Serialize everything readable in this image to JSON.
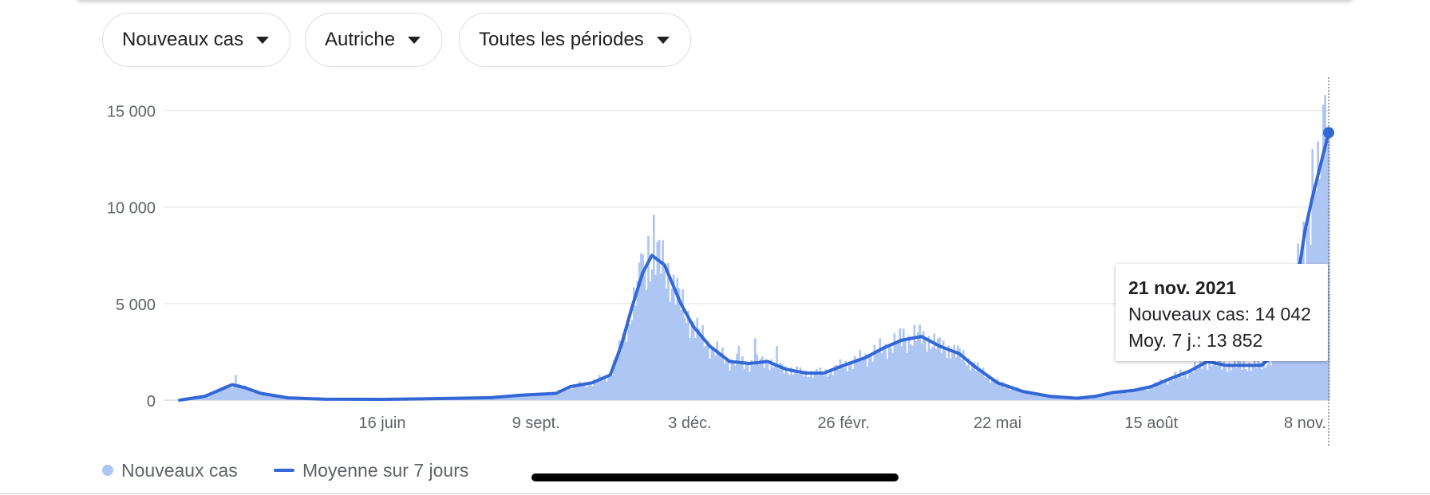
{
  "filters": {
    "metric": {
      "label": "Nouveaux cas"
    },
    "country": {
      "label": "Autriche"
    },
    "period": {
      "label": "Toutes les périodes"
    }
  },
  "colors": {
    "bars": "#aec6f4",
    "line": "#3367d6",
    "grid": "#e8eaed",
    "text": "#202124",
    "muted": "#5f6368"
  },
  "icons": {
    "dropdown": "caret-down-icon",
    "marker": "selected-point-marker"
  },
  "tooltip": {
    "date": "21 nov. 2021",
    "new_cases_line": "Nouveaux cas: 14 042",
    "avg_line": "Moy. 7 j.: 13 852"
  },
  "legend": {
    "bars_label": "Nouveaux cas",
    "line_label": "Moyenne sur 7 jours"
  },
  "chart_data": {
    "type": "bar",
    "combined_with": "line",
    "title": "",
    "xlabel": "",
    "ylabel": "",
    "ylim": [
      0,
      16800
    ],
    "grid": true,
    "legend_position": "bottom-left",
    "date_range": [
      "2020-02-25",
      "2021-11-21"
    ],
    "y_ticks": [
      {
        "value": 0,
        "label": "0"
      },
      {
        "value": 5000,
        "label": "5 000"
      },
      {
        "value": 10000,
        "label": "10 000"
      },
      {
        "value": 15000,
        "label": "15 000"
      }
    ],
    "x_ticks": [
      {
        "date": "2020-06-16",
        "label": "16 juin"
      },
      {
        "date": "2020-09-09",
        "label": "9 sept."
      },
      {
        "date": "2020-12-03",
        "label": "3 déc."
      },
      {
        "date": "2021-02-26",
        "label": "26 févr."
      },
      {
        "date": "2021-05-22",
        "label": "22 mai"
      },
      {
        "date": "2021-08-15",
        "label": "15 août"
      },
      {
        "date": "2021-11-08",
        "label": "8 nov."
      }
    ],
    "series": [
      {
        "name": "Moyenne sur 7 jours",
        "type": "line",
        "points": [
          [
            "2020-02-25",
            0
          ],
          [
            "2020-03-10",
            200
          ],
          [
            "2020-03-20",
            600
          ],
          [
            "2020-03-25",
            800
          ],
          [
            "2020-04-01",
            650
          ],
          [
            "2020-04-10",
            350
          ],
          [
            "2020-04-25",
            120
          ],
          [
            "2020-05-15",
            50
          ],
          [
            "2020-06-16",
            40
          ],
          [
            "2020-07-15",
            80
          ],
          [
            "2020-08-15",
            130
          ],
          [
            "2020-08-31",
            250
          ],
          [
            "2020-09-20",
            350
          ],
          [
            "2020-09-28",
            700
          ],
          [
            "2020-10-10",
            900
          ],
          [
            "2020-10-20",
            1300
          ],
          [
            "2020-10-26",
            2800
          ],
          [
            "2020-11-01",
            4800
          ],
          [
            "2020-11-07",
            6600
          ],
          [
            "2020-11-12",
            7500
          ],
          [
            "2020-11-19",
            7000
          ],
          [
            "2020-11-28",
            5000
          ],
          [
            "2020-12-05",
            3800
          ],
          [
            "2020-12-14",
            2800
          ],
          [
            "2020-12-25",
            2000
          ],
          [
            "2021-01-05",
            1900
          ],
          [
            "2021-01-15",
            2000
          ],
          [
            "2021-01-25",
            1600
          ],
          [
            "2021-02-05",
            1400
          ],
          [
            "2021-02-15",
            1400
          ],
          [
            "2021-02-26",
            1800
          ],
          [
            "2021-03-10",
            2200
          ],
          [
            "2021-03-20",
            2700
          ],
          [
            "2021-03-30",
            3100
          ],
          [
            "2021-04-10",
            3300
          ],
          [
            "2021-04-20",
            2800
          ],
          [
            "2021-05-01",
            2400
          ],
          [
            "2021-05-10",
            1700
          ],
          [
            "2021-05-22",
            900
          ],
          [
            "2021-06-05",
            450
          ],
          [
            "2021-06-20",
            200
          ],
          [
            "2021-07-05",
            100
          ],
          [
            "2021-07-15",
            200
          ],
          [
            "2021-07-25",
            400
          ],
          [
            "2021-08-05",
            500
          ],
          [
            "2021-08-15",
            700
          ],
          [
            "2021-08-25",
            1100
          ],
          [
            "2021-09-05",
            1500
          ],
          [
            "2021-09-15",
            2000
          ],
          [
            "2021-09-25",
            1800
          ],
          [
            "2021-10-05",
            1800
          ],
          [
            "2021-10-15",
            1800
          ],
          [
            "2021-10-22",
            2400
          ],
          [
            "2021-10-29",
            4000
          ],
          [
            "2021-11-05",
            7000
          ],
          [
            "2021-11-08",
            8800
          ],
          [
            "2021-11-12",
            10500
          ],
          [
            "2021-11-16",
            12000
          ],
          [
            "2021-11-21",
            13852
          ]
        ]
      },
      {
        "name": "Nouveaux cas",
        "type": "bar",
        "points": [
          [
            "2020-03-27",
            1300
          ],
          [
            "2020-11-13",
            9600
          ],
          [
            "2020-11-10",
            8500
          ],
          [
            "2020-11-06",
            7600
          ],
          [
            "2020-12-30",
            2800
          ],
          [
            "2021-01-08",
            3200
          ],
          [
            "2021-01-20",
            2800
          ],
          [
            "2021-04-06",
            3900
          ],
          [
            "2021-03-31",
            3700
          ],
          [
            "2021-11-12",
            13000
          ],
          [
            "2021-11-15",
            13400
          ],
          [
            "2021-11-18",
            15300
          ],
          [
            "2021-11-19",
            15800
          ],
          [
            "2021-11-21",
            14042
          ]
        ]
      }
    ],
    "highlight": {
      "date": "2021-11-21",
      "new_cases": 14042,
      "avg_7d": 13852
    }
  }
}
